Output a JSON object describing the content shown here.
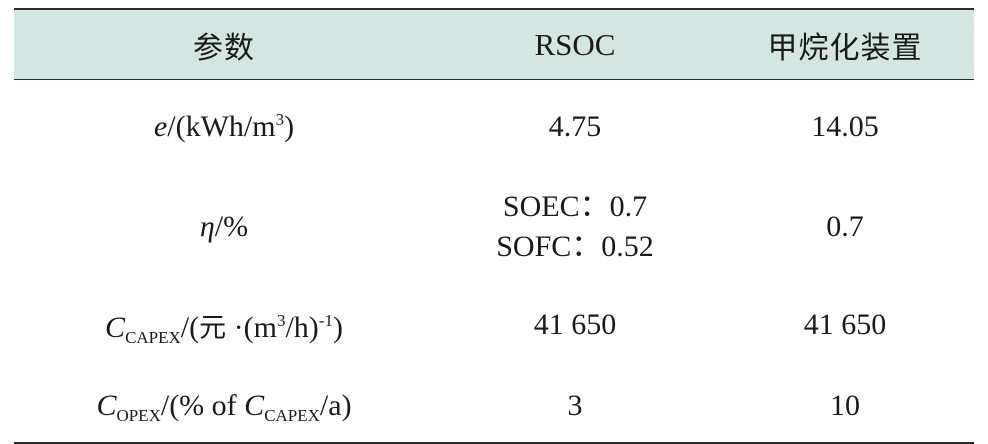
{
  "table": {
    "headers": [
      "参数",
      "RSOC",
      "甲烷化装置"
    ],
    "rows": [
      {
        "param": {
          "symbol": "e",
          "unit_prefix": "/(kWh/m",
          "unit_sup": "3",
          "unit_suffix": ")"
        },
        "rsoc": "4.75",
        "methanation": "14.05"
      },
      {
        "param": {
          "symbol": "η",
          "unit": "/%"
        },
        "rsoc_lines": [
          "SOEC：0.7",
          "SOFC：0.52"
        ],
        "methanation": "0.7"
      },
      {
        "param": {
          "symbol": "C",
          "symbol_sub": "CAPEX",
          "unit_open": "/(",
          "unit_cn": "元",
          "unit_mid": " ·(m",
          "unit_sup": "3",
          "unit_mid2": "/h)",
          "unit_sup2": "-1",
          "unit_close": ")"
        },
        "rsoc": "41 650",
        "methanation": "41 650"
      },
      {
        "param": {
          "symbol": "C",
          "symbol_sub": "OPEX",
          "unit_open": "/(% of ",
          "inner_symbol": "C",
          "inner_sub": "CAPEX",
          "unit_close": "/a)"
        },
        "rsoc": "3",
        "methanation": "10"
      }
    ]
  }
}
